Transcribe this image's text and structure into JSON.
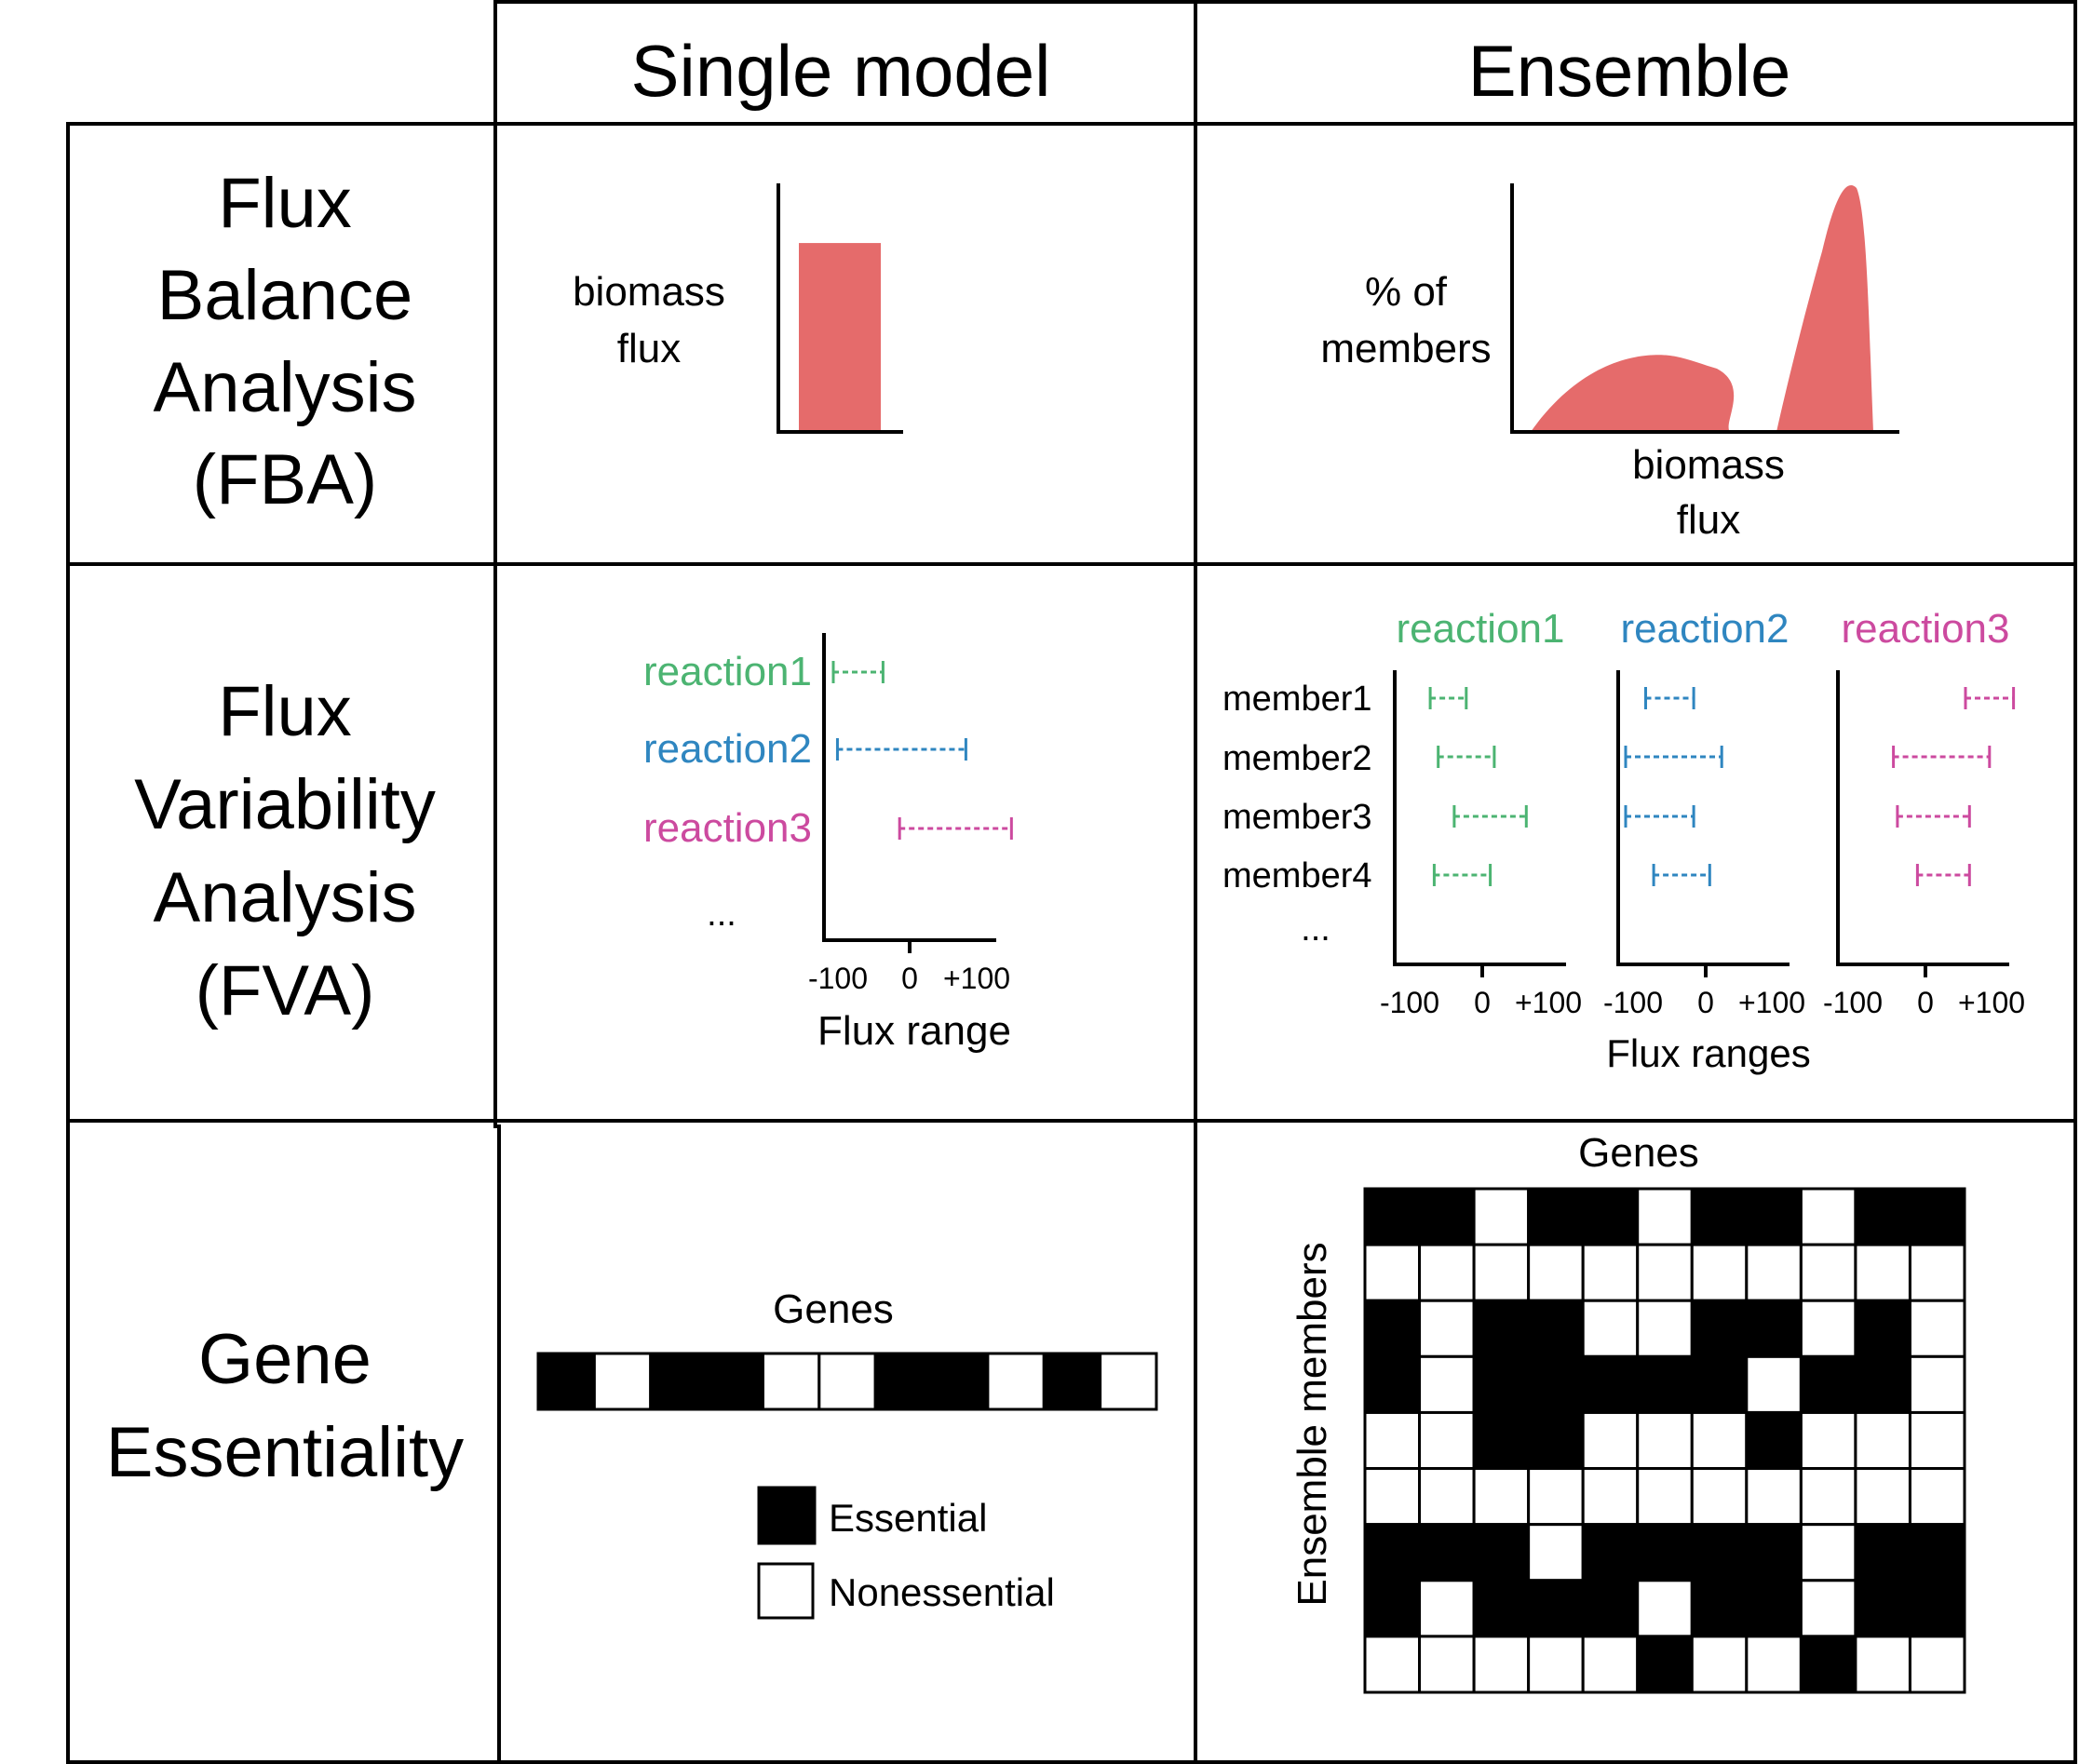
{
  "headers": {
    "single": "Single model",
    "ensemble": "Ensemble"
  },
  "rows": {
    "fba": [
      "Flux",
      "Balance",
      "Analysis",
      "(FBA)"
    ],
    "fva": [
      "Flux",
      "Variability",
      "Analysis",
      "(FVA)"
    ],
    "ge": [
      "Gene",
      "Essentiality"
    ]
  },
  "colors": {
    "bar": "#e56b6b",
    "reaction1": "#4cb472",
    "reaction2": "#2f86c0",
    "reaction3": "#cc4a9f",
    "grid": "#000000"
  },
  "fba_single": {
    "ylabel": [
      "biomass",
      "flux"
    ],
    "bar_fraction": 0.76
  },
  "fba_ensemble": {
    "ylabel": [
      "% of",
      "members"
    ],
    "xlabel": [
      "biomass",
      "flux"
    ]
  },
  "fva_single": {
    "reactions": [
      {
        "label": "reaction1",
        "color_key": "reaction1",
        "min": -100,
        "max": -40
      },
      {
        "label": "reaction2",
        "color_key": "reaction2",
        "min": -95,
        "max": 60
      },
      {
        "label": "reaction3",
        "color_key": "reaction3",
        "min": -20,
        "max": 115
      }
    ],
    "ellipsis": "...",
    "ticks": [
      "-100",
      "0",
      "+100"
    ],
    "axis_title": "Flux range"
  },
  "fva_ensemble": {
    "panels": [
      {
        "title": "reaction1",
        "color_key": "reaction1",
        "ranges": [
          [
            -65,
            -20
          ],
          [
            -55,
            15
          ],
          [
            -35,
            55
          ],
          [
            -60,
            10
          ]
        ]
      },
      {
        "title": "reaction2",
        "color_key": "reaction2",
        "ranges": [
          [
            -75,
            -15
          ],
          [
            -100,
            20
          ],
          [
            -100,
            -15
          ],
          [
            -65,
            5
          ]
        ]
      },
      {
        "title": "reaction3",
        "color_key": "reaction3",
        "ranges": [
          [
            50,
            110
          ],
          [
            -40,
            80
          ],
          [
            -35,
            55
          ],
          [
            -10,
            55
          ]
        ]
      }
    ],
    "members": [
      "member1",
      "member2",
      "member3",
      "member4"
    ],
    "ellipsis": "...",
    "ticks": [
      "-100",
      "0",
      "+100"
    ],
    "axis_title": "Flux ranges"
  },
  "ge_single": {
    "title": "Genes",
    "cells": [
      1,
      0,
      1,
      1,
      0,
      0,
      1,
      1,
      0,
      1,
      0
    ],
    "legend": {
      "essential": "Essential",
      "nonessential": "Nonessential"
    }
  },
  "ge_ensemble": {
    "col_title": "Genes",
    "row_title": "Ensemble members",
    "grid": [
      [
        1,
        1,
        0,
        1,
        1,
        0,
        1,
        1,
        0,
        1,
        1
      ],
      [
        0,
        0,
        0,
        0,
        0,
        0,
        0,
        0,
        0,
        0,
        0
      ],
      [
        1,
        0,
        1,
        1,
        0,
        0,
        1,
        1,
        0,
        1,
        0
      ],
      [
        1,
        0,
        1,
        1,
        1,
        1,
        1,
        0,
        1,
        1,
        0
      ],
      [
        0,
        0,
        1,
        1,
        0,
        0,
        0,
        1,
        0,
        0,
        0
      ],
      [
        0,
        0,
        0,
        0,
        0,
        0,
        0,
        0,
        0,
        0,
        0
      ],
      [
        1,
        1,
        1,
        0,
        1,
        1,
        1,
        1,
        0,
        1,
        1
      ],
      [
        1,
        0,
        1,
        1,
        1,
        0,
        1,
        1,
        0,
        1,
        1
      ],
      [
        0,
        0,
        0,
        0,
        0,
        1,
        0,
        0,
        1,
        0,
        0
      ]
    ]
  }
}
